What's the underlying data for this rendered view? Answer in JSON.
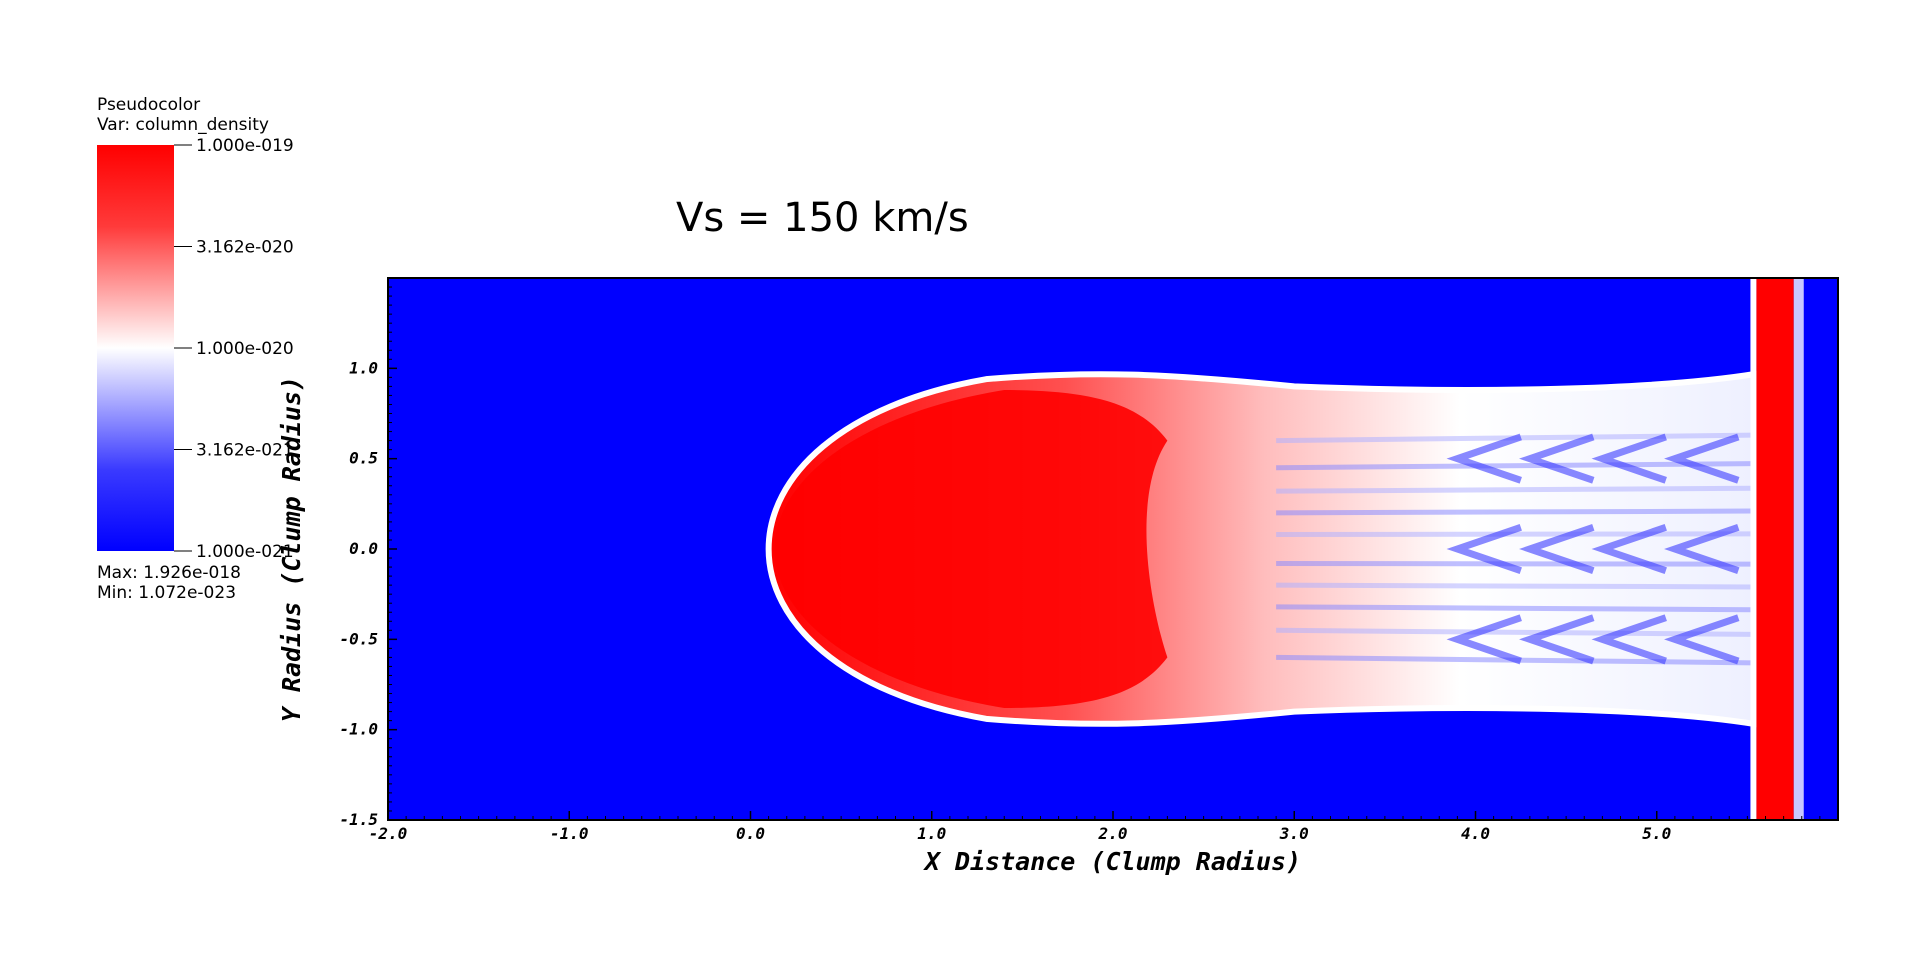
{
  "legend": {
    "plot_type": "Pseudocolor",
    "variable": "Var: column_density",
    "max_text": "Max:  1.926e-018",
    "min_text": "Min:  1.072e-023",
    "tick_labels": [
      "1.000e-019",
      "3.162e-020",
      "1.000e-020",
      "3.162e-021",
      "1.000e-021"
    ],
    "colors": {
      "high": "#ff0000",
      "mid": "#ffffff",
      "low": "#0000ff"
    }
  },
  "chart_data": {
    "type": "heatmap",
    "title": "Vs = 150 km/s",
    "xlabel": "X Distance (Clump Radius)",
    "ylabel": "Y Radius (Clump Radius)",
    "xlim": [
      -2.0,
      6.0
    ],
    "ylim": [
      -1.5,
      1.5
    ],
    "x_ticks": [
      -2.0,
      -1.0,
      0.0,
      1.0,
      2.0,
      3.0,
      4.0,
      5.0
    ],
    "x_tick_labels": [
      "-2.0",
      "-1.0",
      "0.0",
      "1.0",
      "2.0",
      "3.0",
      "4.0",
      "5.0"
    ],
    "y_ticks": [
      -1.5,
      -1.0,
      -0.5,
      0.0,
      0.5,
      1.0
    ],
    "y_tick_labels": [
      "-1.5",
      "-1.0",
      "-0.5",
      "0.0",
      "0.5",
      "1.0"
    ],
    "colorscale": "log",
    "color_range": [
      1e-21,
      1e-19
    ],
    "background_color": "#0000ff",
    "features": {
      "clump_head_x": 0.1,
      "clump_halfwidth_y": 0.97,
      "red_white_transition_x": 2.3,
      "tail_end_x": 5.55,
      "shock_band_x": [
        5.55,
        5.8
      ]
    }
  }
}
